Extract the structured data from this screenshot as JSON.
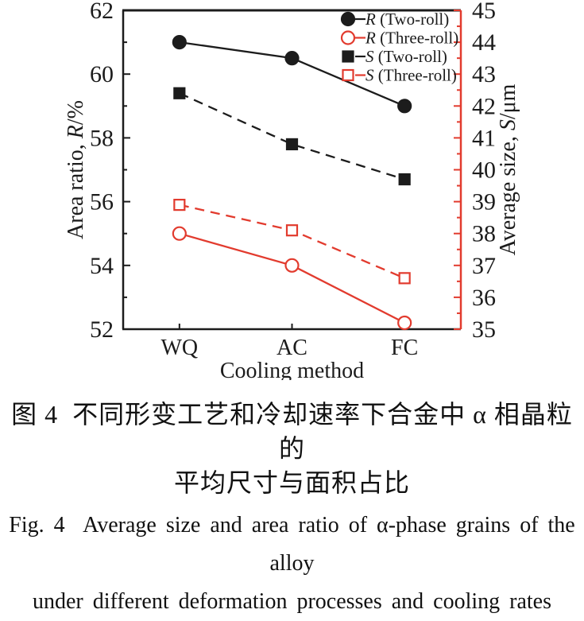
{
  "figure": {
    "captions": {
      "zh_line1": "图 4  不同形变工艺和冷却速率下合金中 α 相晶粒的",
      "zh_line2": "平均尺寸与面积占比",
      "en_line1": "Fig. 4  Average size and area ratio of α-phase grains of the alloy",
      "en_line2": "under different deformation processes and cooling rates"
    }
  },
  "chart_data": {
    "type": "line",
    "categories": [
      "WQ",
      "AC",
      "FC"
    ],
    "xlabel": "Cooling method",
    "grid": false,
    "legend_position": "top-right-inside",
    "frame_color": "#1c1c1c",
    "accent_red": "#e23b2e",
    "left_axis": {
      "label_prefix": "Area ratio, ",
      "label_var": "R",
      "label_suffix": "/%",
      "min": 52,
      "max": 62,
      "major_step": 2,
      "minor_step": 1,
      "tick_labels": [
        "52",
        "54",
        "56",
        "58",
        "60",
        "62"
      ],
      "color": "#1c1c1c"
    },
    "right_axis": {
      "label_prefix": "Average size, ",
      "label_var": "S",
      "label_suffix": "/μm",
      "min": 35,
      "max": 45,
      "major_step": 1,
      "minor_step": 0.5,
      "tick_labels": [
        "35",
        "36",
        "37",
        "38",
        "39",
        "40",
        "41",
        "42",
        "43",
        "44",
        "45"
      ],
      "color": "#e23b2e"
    },
    "series": [
      {
        "name_var": "R",
        "name_rest": "(Two-roll)",
        "axis": "left",
        "color": "#1c1c1c",
        "line": "solid",
        "marker": "circle-filled",
        "values": [
          61.0,
          60.5,
          59.0
        ]
      },
      {
        "name_var": "R",
        "name_rest": "(Three-roll)",
        "axis": "left",
        "color": "#e23b2e",
        "line": "solid",
        "marker": "circle-open",
        "values": [
          55.0,
          54.0,
          52.2
        ]
      },
      {
        "name_var": "S",
        "name_rest": "(Two-roll)",
        "axis": "right",
        "color": "#1c1c1c",
        "line": "dashed",
        "marker": "square-filled",
        "values": [
          42.4,
          40.8,
          39.7
        ]
      },
      {
        "name_var": "S",
        "name_rest": "(Three-roll)",
        "axis": "right",
        "color": "#e23b2e",
        "line": "dashed",
        "marker": "square-open",
        "values": [
          38.9,
          38.1,
          36.6
        ]
      }
    ]
  }
}
